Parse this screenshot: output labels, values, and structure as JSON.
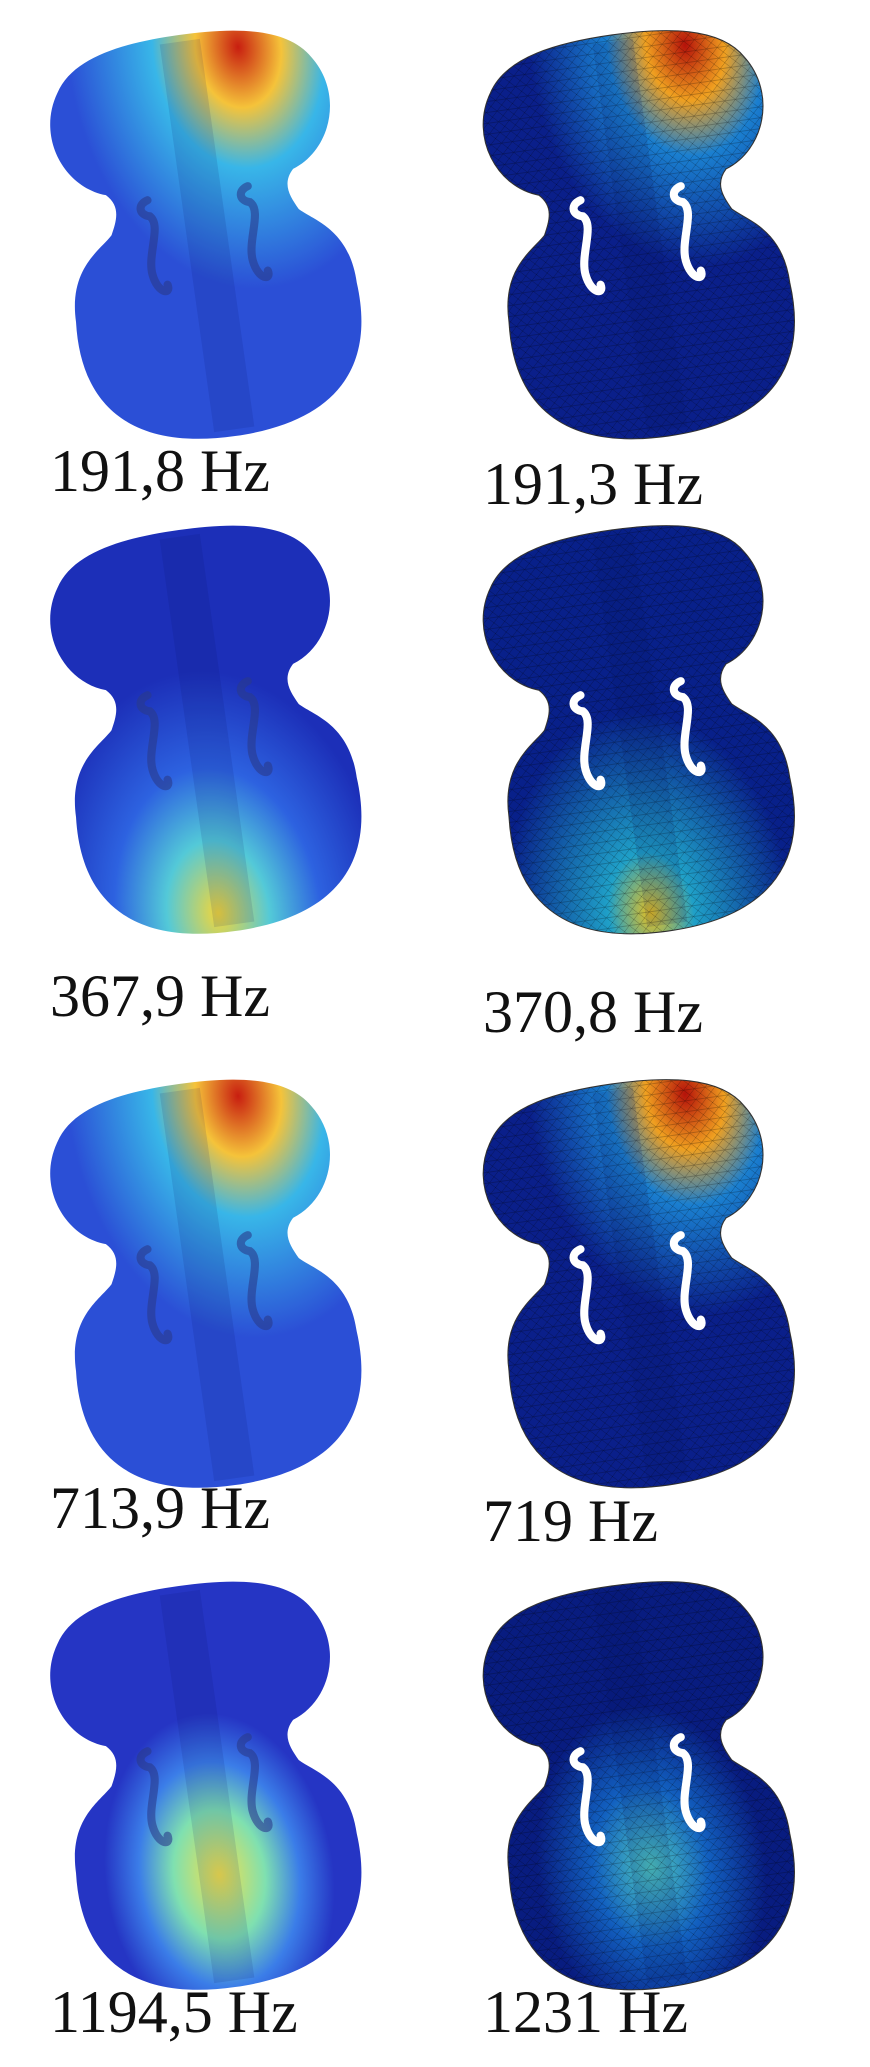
{
  "rows": [
    {
      "left": "191,8 Hz",
      "right": "191,3 Hz"
    },
    {
      "left": "367,9 Hz",
      "right": "370,8 Hz"
    },
    {
      "left": "713,9 Hz",
      "right": "719 Hz"
    },
    {
      "left": "1194,5 Hz",
      "right": "1231 Hz"
    }
  ]
}
